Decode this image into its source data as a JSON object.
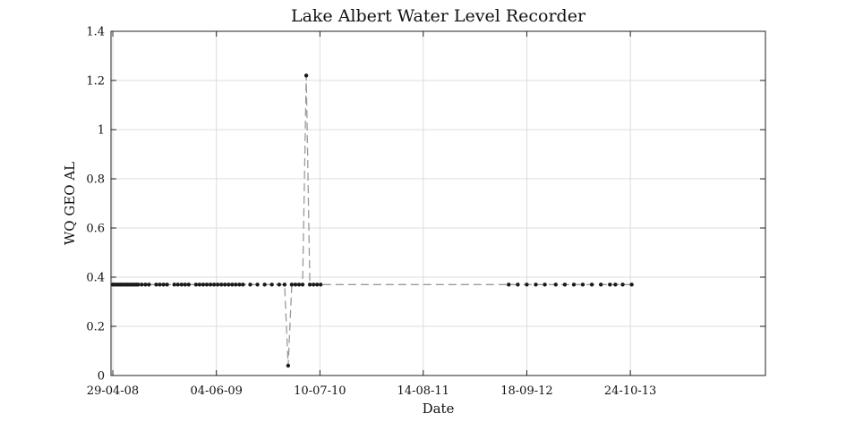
{
  "chart_data": {
    "type": "line",
    "title": "Lake Albert Water Level Recorder",
    "xlabel": "Date",
    "ylabel": "WQ GEO AL",
    "x_ticks": [
      "29-04-08",
      "04-06-09",
      "10-07-10",
      "14-08-11",
      "18-09-12",
      "24-10-13"
    ],
    "xlim": [
      "2008-04-22",
      "2015-03-31"
    ],
    "ylim": [
      0,
      1.4
    ],
    "y_ticks": [
      0,
      0.2,
      0.4,
      0.6,
      0.8,
      1,
      1.2,
      1.4
    ],
    "y_tick_labels": [
      "0",
      "0.2",
      "0.4",
      "0.6",
      "0.8",
      "1",
      "1.2",
      "1.4"
    ],
    "grid": true,
    "series": [
      {
        "style": "dashed gray line with black dot markers",
        "points": [
          [
            "2008-04-29",
            0.37
          ],
          [
            "2008-05-06",
            0.37
          ],
          [
            "2008-05-13",
            0.37
          ],
          [
            "2008-05-20",
            0.37
          ],
          [
            "2008-05-27",
            0.37
          ],
          [
            "2008-06-03",
            0.37
          ],
          [
            "2008-06-10",
            0.37
          ],
          [
            "2008-06-17",
            0.37
          ],
          [
            "2008-06-24",
            0.37
          ],
          [
            "2008-07-01",
            0.37
          ],
          [
            "2008-07-08",
            0.37
          ],
          [
            "2008-07-15",
            0.37
          ],
          [
            "2008-07-22",
            0.37
          ],
          [
            "2008-07-29",
            0.37
          ],
          [
            "2008-08-05",
            0.37
          ],
          [
            "2008-08-19",
            0.37
          ],
          [
            "2008-09-02",
            0.37
          ],
          [
            "2008-09-16",
            0.37
          ],
          [
            "2008-10-14",
            0.37
          ],
          [
            "2008-10-28",
            0.37
          ],
          [
            "2008-11-11",
            0.37
          ],
          [
            "2008-11-25",
            0.37
          ],
          [
            "2008-12-23",
            0.37
          ],
          [
            "2009-01-06",
            0.37
          ],
          [
            "2009-01-20",
            0.37
          ],
          [
            "2009-02-03",
            0.37
          ],
          [
            "2009-02-17",
            0.37
          ],
          [
            "2009-03-17",
            0.37
          ],
          [
            "2009-03-31",
            0.37
          ],
          [
            "2009-04-14",
            0.37
          ],
          [
            "2009-04-28",
            0.37
          ],
          [
            "2009-05-12",
            0.37
          ],
          [
            "2009-05-26",
            0.37
          ],
          [
            "2009-06-09",
            0.37
          ],
          [
            "2009-06-23",
            0.37
          ],
          [
            "2009-07-07",
            0.37
          ],
          [
            "2009-07-21",
            0.37
          ],
          [
            "2009-08-04",
            0.37
          ],
          [
            "2009-08-18",
            0.37
          ],
          [
            "2009-09-01",
            0.37
          ],
          [
            "2009-09-15",
            0.37
          ],
          [
            "2009-10-13",
            0.37
          ],
          [
            "2009-11-10",
            0.37
          ],
          [
            "2009-12-08",
            0.37
          ],
          [
            "2010-01-05",
            0.37
          ],
          [
            "2010-02-02",
            0.37
          ],
          [
            "2010-02-23",
            0.37
          ],
          [
            "2010-03-09",
            0.04
          ],
          [
            "2010-03-23",
            0.37
          ],
          [
            "2010-04-06",
            0.37
          ],
          [
            "2010-04-20",
            0.37
          ],
          [
            "2010-05-04",
            0.37
          ],
          [
            "2010-05-18",
            1.22
          ],
          [
            "2010-06-01",
            0.37
          ],
          [
            "2010-06-15",
            0.37
          ],
          [
            "2010-06-29",
            0.37
          ],
          [
            "2010-07-13",
            0.37
          ],
          [
            "2012-07-10",
            0.37
          ],
          [
            "2012-08-14",
            0.37
          ],
          [
            "2012-09-18",
            0.37
          ],
          [
            "2012-10-23",
            0.37
          ],
          [
            "2012-11-27",
            0.37
          ],
          [
            "2013-01-08",
            0.37
          ],
          [
            "2013-02-12",
            0.37
          ],
          [
            "2013-03-19",
            0.37
          ],
          [
            "2013-04-23",
            0.37
          ],
          [
            "2013-05-28",
            0.37
          ],
          [
            "2013-07-02",
            0.37
          ],
          [
            "2013-08-06",
            0.37
          ],
          [
            "2013-08-27",
            0.37
          ],
          [
            "2013-09-24",
            0.37
          ],
          [
            "2013-10-29",
            0.37
          ]
        ]
      }
    ]
  }
}
